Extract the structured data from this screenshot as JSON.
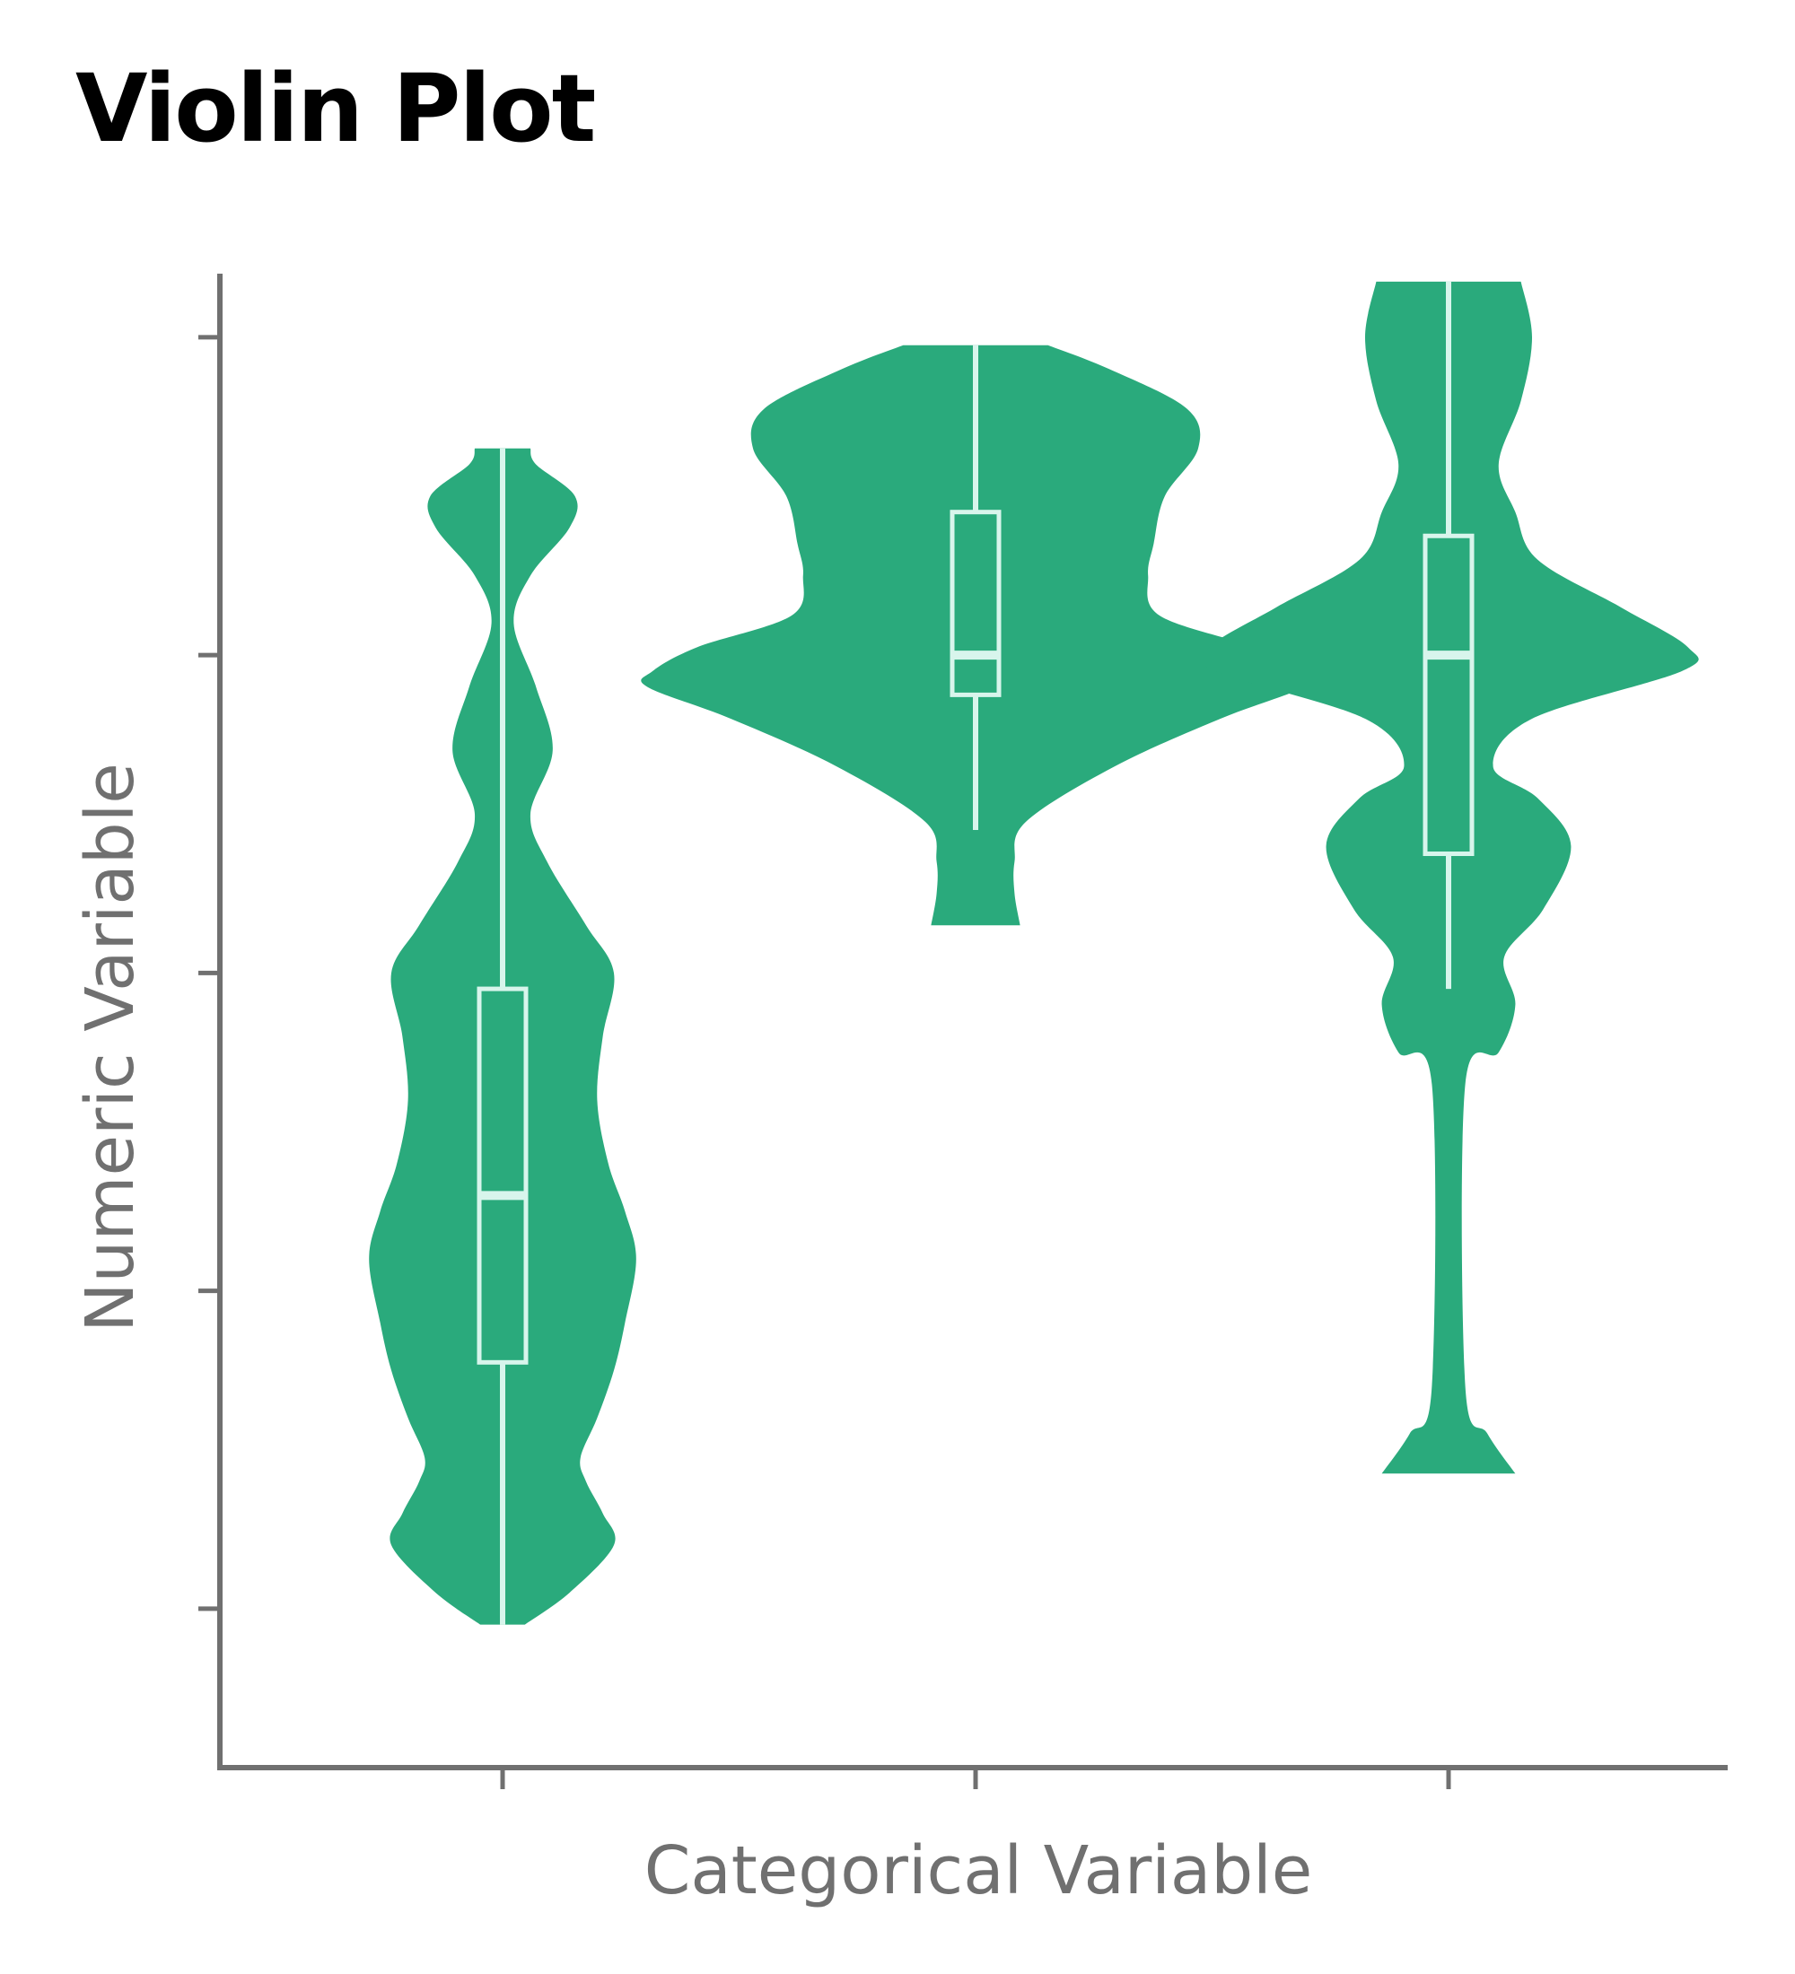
{
  "chart_data": {
    "type": "violin",
    "title": "Violin Plot",
    "xlabel": "Categorical Variable",
    "ylabel": "Numeric Variable",
    "ylim": [
      0,
      9.4
    ],
    "yticks": [
      1,
      3,
      5,
      7,
      9
    ],
    "categories": [
      "",
      "",
      ""
    ],
    "colors": {
      "violin": "#2aaa7c",
      "box": "#d8f5ec",
      "axis": "#707070",
      "label": "#707070"
    },
    "series": [
      {
        "min": 0.9,
        "q1": 2.55,
        "median": 3.6,
        "q3": 4.9,
        "max": 8.3,
        "density": [
          [
            0.9,
            0.4
          ],
          [
            1.1,
            1.2
          ],
          [
            1.4,
            2.0
          ],
          [
            1.6,
            1.8
          ],
          [
            1.8,
            1.5
          ],
          [
            1.95,
            1.4
          ],
          [
            2.2,
            1.7
          ],
          [
            2.5,
            2.0
          ],
          [
            2.8,
            2.2
          ],
          [
            3.2,
            2.4
          ],
          [
            3.5,
            2.2
          ],
          [
            3.8,
            1.9
          ],
          [
            4.2,
            1.7
          ],
          [
            4.6,
            1.8
          ],
          [
            5.0,
            2.0
          ],
          [
            5.3,
            1.5
          ],
          [
            5.7,
            0.8
          ],
          [
            6.0,
            0.5
          ],
          [
            6.4,
            0.9
          ],
          [
            6.8,
            0.6
          ],
          [
            7.2,
            0.2
          ],
          [
            7.5,
            0.5
          ],
          [
            7.8,
            1.2
          ],
          [
            8.0,
            1.3
          ],
          [
            8.2,
            0.6
          ],
          [
            8.3,
            0.5
          ]
        ]
      },
      {
        "min": 5.9,
        "q1": 6.75,
        "median": 7.0,
        "q3": 7.9,
        "max": 8.95,
        "density": [
          [
            5.3,
            0.8
          ],
          [
            5.5,
            0.7
          ],
          [
            5.7,
            0.7
          ],
          [
            5.95,
            0.9
          ],
          [
            6.3,
            2.5
          ],
          [
            6.6,
            4.4
          ],
          [
            6.8,
            5.9
          ],
          [
            6.9,
            5.8
          ],
          [
            7.05,
            5.0
          ],
          [
            7.25,
            3.3
          ],
          [
            7.5,
            3.1
          ],
          [
            7.7,
            3.2
          ],
          [
            8.0,
            3.4
          ],
          [
            8.3,
            4.0
          ],
          [
            8.55,
            3.8
          ],
          [
            8.8,
            2.4
          ],
          [
            8.95,
            1.3
          ]
        ]
      },
      {
        "min": 4.9,
        "q1": 5.75,
        "median": 7.0,
        "q3": 7.75,
        "max": 9.35,
        "density": [
          [
            1.85,
            1.2
          ],
          [
            2.1,
            0.7
          ],
          [
            2.4,
            0.3
          ],
          [
            4.3,
            0.3
          ],
          [
            4.5,
            0.9
          ],
          [
            4.8,
            1.2
          ],
          [
            5.1,
            1.0
          ],
          [
            5.4,
            1.7
          ],
          [
            5.8,
            2.2
          ],
          [
            6.1,
            1.6
          ],
          [
            6.3,
            0.8
          ],
          [
            6.6,
            1.5
          ],
          [
            6.9,
            4.2
          ],
          [
            7.05,
            4.3
          ],
          [
            7.3,
            3.1
          ],
          [
            7.6,
            1.6
          ],
          [
            7.9,
            1.2
          ],
          [
            8.2,
            0.9
          ],
          [
            8.6,
            1.3
          ],
          [
            9.0,
            1.5
          ],
          [
            9.35,
            1.3
          ]
        ]
      }
    ]
  }
}
